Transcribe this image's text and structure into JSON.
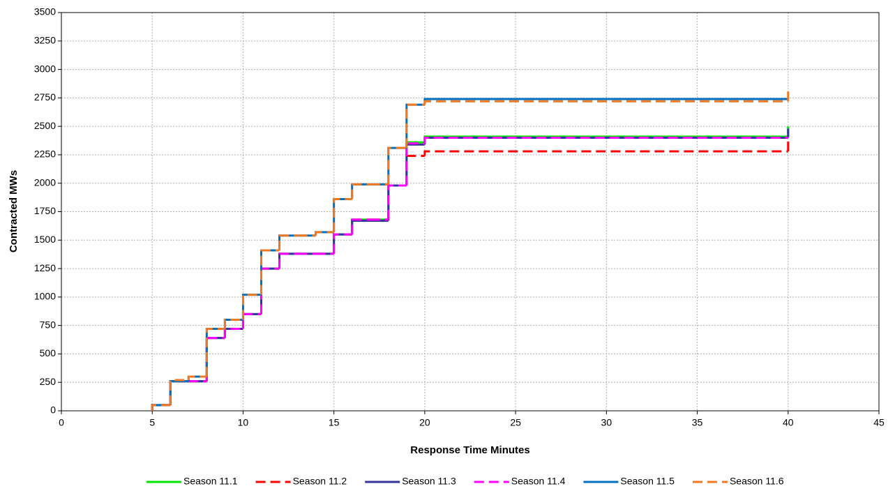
{
  "chart_data": {
    "type": "step-line",
    "xlabel": "Response Time Minutes",
    "ylabel": "Contracted MWs",
    "x": [
      5,
      6,
      7,
      8,
      9,
      10,
      11,
      12,
      13,
      14,
      15,
      16,
      17,
      18,
      19,
      20,
      40
    ],
    "series": [
      {
        "name": "Season 11.1",
        "color": "#00e600",
        "dashed": false,
        "values": [
          50,
          260,
          260,
          640,
          720,
          850,
          1250,
          1380,
          1380,
          1380,
          1550,
          1680,
          1680,
          1980,
          2360,
          2410,
          2500
        ]
      },
      {
        "name": "Season 11.2",
        "color": "#ff0000",
        "dashed": true,
        "values": [
          50,
          260,
          260,
          640,
          720,
          850,
          1250,
          1380,
          1380,
          1380,
          1550,
          1680,
          1680,
          1980,
          2240,
          2280,
          2370
        ]
      },
      {
        "name": "Season 11.3",
        "color": "#333399",
        "dashed": false,
        "values": [
          50,
          260,
          260,
          640,
          720,
          850,
          1250,
          1380,
          1380,
          1380,
          1550,
          1670,
          1670,
          1980,
          2340,
          2400,
          2480
        ]
      },
      {
        "name": "Season 11.4",
        "color": "#ff00ff",
        "dashed": true,
        "values": [
          50,
          260,
          260,
          640,
          720,
          850,
          1250,
          1380,
          1380,
          1380,
          1550,
          1680,
          1680,
          1980,
          2350,
          2400,
          2400
        ]
      },
      {
        "name": "Season 11.5",
        "color": "#0070c0",
        "dashed": false,
        "values": [
          50,
          260,
          300,
          720,
          800,
          1020,
          1410,
          1540,
          1540,
          1570,
          1860,
          1990,
          1990,
          2310,
          2690,
          2740,
          2740
        ]
      },
      {
        "name": "Season 11.6",
        "color": "#f07820",
        "dashed": true,
        "values": [
          50,
          270,
          300,
          720,
          800,
          1020,
          1410,
          1540,
          1540,
          1570,
          1860,
          1990,
          1990,
          2310,
          2690,
          2720,
          2820
        ]
      }
    ],
    "xlim": [
      0,
      45
    ],
    "xticks": [
      0,
      5,
      10,
      15,
      20,
      25,
      30,
      35,
      40,
      45
    ],
    "ylim": [
      0,
      3500
    ],
    "yticks": [
      0,
      250,
      500,
      750,
      1000,
      1250,
      1500,
      1750,
      2000,
      2250,
      2500,
      2750,
      3000,
      3250,
      3500
    ],
    "grid": true,
    "legend": "bottom"
  }
}
